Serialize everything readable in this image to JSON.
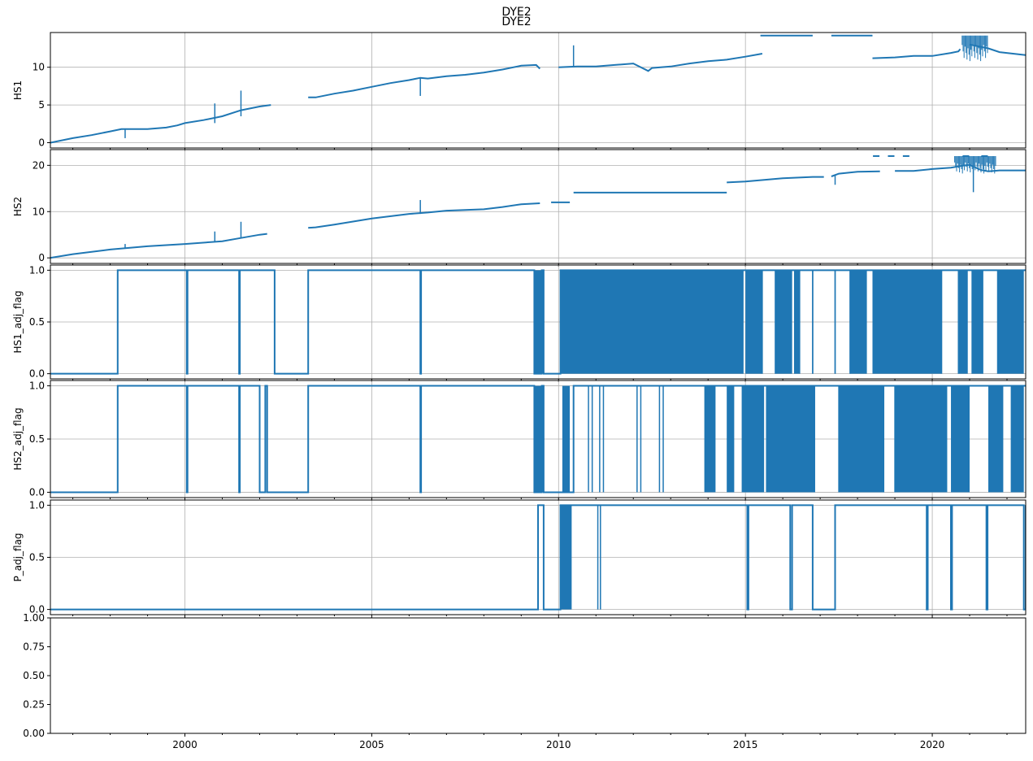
{
  "suptitle": "DYE2",
  "chart_data": [
    {
      "type": "line",
      "title": "DYE2",
      "ylabel": "HS1",
      "xlim": [
        1996.4,
        2022.5
      ],
      "ylim": [
        -0.7,
        14.6
      ],
      "yticks": [
        {
          "value": 0,
          "label": "0"
        },
        {
          "value": 5,
          "label": "5"
        },
        {
          "value": 10,
          "label": "10"
        }
      ],
      "grid": true,
      "color": "#1f77b4",
      "series": [
        {
          "x": [
            1996.4,
            1997.0,
            1997.5,
            1998.0,
            1998.3,
            1999.0,
            1999.5,
            1999.8,
            2000.0,
            2000.5,
            2001.0,
            2001.5,
            2002.0,
            2002.3,
            null,
            2003.3,
            2003.5,
            2004.0,
            2004.5,
            2005.0,
            2005.5,
            2006.0,
            2006.3,
            2006.5,
            2007.0,
            2007.5,
            2008.0,
            2008.5,
            2009.0,
            2009.4,
            2009.5,
            null,
            2010.0,
            2010.5,
            2011.0,
            2011.5,
            2012.0,
            2012.4,
            2012.5,
            2013.0,
            2013.5,
            2014.0,
            2014.5,
            2015.0,
            2015.45,
            null,
            2015.4,
            2016.8,
            null,
            2017.3,
            2018.4,
            null,
            2018.4,
            2019.0,
            2019.5,
            2020.0,
            2020.5,
            2020.7,
            2020.75,
            null,
            2021.0,
            2021.5,
            2021.8,
            2022.5
          ],
          "y": [
            0.0,
            0.6,
            1.0,
            1.5,
            1.8,
            1.8,
            2.0,
            2.3,
            2.6,
            3.0,
            3.5,
            4.3,
            4.8,
            5.0,
            null,
            6.0,
            6.0,
            6.5,
            6.9,
            7.4,
            7.9,
            8.3,
            8.6,
            8.5,
            8.8,
            9.0,
            9.3,
            9.7,
            10.2,
            10.3,
            9.8,
            null,
            10.0,
            10.1,
            10.1,
            10.3,
            10.5,
            9.5,
            9.9,
            10.1,
            10.5,
            10.8,
            11.0,
            11.4,
            11.8,
            null,
            14.2,
            14.2,
            null,
            14.2,
            14.2,
            null,
            11.2,
            11.3,
            11.5,
            11.5,
            11.9,
            12.1,
            12.4,
            null,
            13.0,
            12.5,
            12.0,
            11.6
          ]
        }
      ],
      "spikes": [
        [
          1998.4,
          1.8,
          0.6
        ],
        [
          2000.8,
          2.6,
          5.2
        ],
        [
          2001.5,
          3.5,
          6.9
        ],
        [
          2003.3,
          8.0,
          8.0
        ],
        [
          2006.3,
          8.6,
          6.2
        ],
        [
          2010.4,
          10.1,
          12.9
        ]
      ],
      "band": {
        "x": [
          2020.8,
          2021.5
        ],
        "y_low": 10.6,
        "y_high": 14.2,
        "pattern": "dense"
      }
    },
    {
      "type": "line",
      "ylabel": "HS2",
      "xlim": [
        1996.4,
        2022.5
      ],
      "ylim": [
        -1.2,
        23.4
      ],
      "yticks": [
        {
          "value": 0,
          "label": "0"
        },
        {
          "value": 10,
          "label": "10"
        },
        {
          "value": 20,
          "label": "20"
        }
      ],
      "grid": true,
      "color": "#1f77b4",
      "series": [
        {
          "x": [
            1996.4,
            1997.0,
            1998.0,
            1999.0,
            2000.0,
            2001.0,
            2001.5,
            2002.0,
            2002.2,
            null,
            2003.3,
            2003.5,
            2004.0,
            2005.0,
            2006.0,
            2006.5,
            2007.0,
            2008.0,
            2008.5,
            2009.0,
            2009.5,
            null,
            2009.8,
            2010.3,
            null,
            2010.4,
            2014.5,
            null,
            2014.5,
            2015.0,
            2016.0,
            2016.8,
            2017.1,
            null,
            2017.3,
            2017.5,
            2018.0,
            2018.6,
            null,
            2019.0,
            2019.5,
            2020.0,
            2020.5,
            2020.8,
            2021.0,
            2021.3,
            2021.5,
            2021.8,
            2022.5
          ],
          "y": [
            0.0,
            0.8,
            1.8,
            2.5,
            3.0,
            3.6,
            4.3,
            5.0,
            5.2,
            null,
            6.5,
            6.6,
            7.2,
            8.5,
            9.5,
            9.8,
            10.2,
            10.5,
            11.0,
            11.6,
            11.8,
            null,
            12.0,
            12.0,
            null,
            14.1,
            14.1,
            null,
            16.3,
            16.5,
            17.2,
            17.5,
            17.5,
            null,
            17.6,
            18.2,
            18.6,
            18.7,
            null,
            18.8,
            18.8,
            19.2,
            19.5,
            19.9,
            20.1,
            19.0,
            18.7,
            18.9,
            18.9
          ]
        }
      ],
      "spikes": [
        [
          1998.4,
          2.0,
          3.0
        ],
        [
          2000.8,
          3.5,
          5.7
        ],
        [
          2001.5,
          4.3,
          7.8
        ],
        [
          2003.3,
          8.5,
          8.5
        ],
        [
          2006.3,
          9.5,
          12.5
        ],
        [
          2017.4,
          18.0,
          15.8
        ],
        [
          2021.1,
          19.5,
          14.2
        ]
      ],
      "dots": [
        [
          2018.5,
          22.0
        ],
        [
          2018.9,
          22.0
        ],
        [
          2019.3,
          22.0
        ],
        [
          2020.9,
          22.0
        ],
        [
          2021.4,
          22.0
        ]
      ],
      "band": {
        "x": [
          2020.6,
          2021.7
        ],
        "y_low": 18.0,
        "y_high": 22.0,
        "pattern": "dense"
      }
    },
    {
      "type": "line",
      "ylabel": "HS1_adj_flag",
      "xlim": [
        1996.4,
        2022.5
      ],
      "ylim": [
        -0.05,
        1.05
      ],
      "yticks": [
        {
          "value": 0,
          "label": "0.0"
        },
        {
          "value": 0.5,
          "label": "0.5"
        },
        {
          "value": 1,
          "label": "1.0"
        }
      ],
      "grid": true,
      "color": "#1f77b4",
      "steps": [
        [
          1996.4,
          0
        ],
        [
          1998.2,
          1
        ],
        [
          2000.05,
          0
        ],
        [
          2000.07,
          1
        ],
        [
          2001.45,
          0
        ],
        [
          2001.47,
          1
        ],
        [
          2002.4,
          0
        ],
        [
          2003.3,
          1
        ],
        [
          2006.3,
          0
        ],
        [
          2006.32,
          1
        ],
        [
          2009.35,
          0
        ],
        [
          2009.55,
          1
        ],
        [
          2009.6,
          0
        ],
        [
          2010.05,
          1
        ],
        [
          2022.5,
          1
        ]
      ],
      "dense_blocks": [
        [
          2009.35,
          2009.6
        ],
        [
          2010.05,
          2014.95
        ],
        [
          2015.0,
          2015.45
        ],
        [
          2015.8,
          2016.25
        ],
        [
          2016.3,
          2016.45
        ],
        [
          2017.8,
          2018.25
        ],
        [
          2018.4,
          2020.25
        ],
        [
          2020.7,
          2020.95
        ],
        [
          2021.05,
          2021.35
        ],
        [
          2021.75,
          2022.45
        ]
      ],
      "gaps": [
        [
          2015.45,
          2015.8
        ],
        [
          2016.45,
          2016.8
        ],
        [
          2016.8,
          2017.4
        ],
        [
          2017.4,
          2017.8
        ],
        [
          2020.25,
          2020.7
        ],
        [
          2021.35,
          2021.75
        ]
      ]
    },
    {
      "type": "line",
      "ylabel": "HS2_adj_flag",
      "xlim": [
        1996.4,
        2022.5
      ],
      "ylim": [
        -0.05,
        1.05
      ],
      "yticks": [
        {
          "value": 0,
          "label": "0.0"
        },
        {
          "value": 0.5,
          "label": "0.5"
        },
        {
          "value": 1,
          "label": "1.0"
        }
      ],
      "grid": true,
      "color": "#1f77b4",
      "steps": [
        [
          1996.4,
          0
        ],
        [
          1998.2,
          1
        ],
        [
          2000.05,
          0
        ],
        [
          2000.07,
          1
        ],
        [
          2001.45,
          0
        ],
        [
          2001.47,
          1
        ],
        [
          2002.0,
          0
        ],
        [
          2002.15,
          1
        ],
        [
          2002.2,
          0
        ],
        [
          2003.3,
          1
        ],
        [
          2006.3,
          0
        ],
        [
          2006.32,
          1
        ],
        [
          2009.35,
          0
        ],
        [
          2009.55,
          1
        ],
        [
          2009.6,
          0
        ],
        [
          2010.4,
          1
        ],
        [
          2022.5,
          1
        ]
      ],
      "dense_blocks": [
        [
          2009.35,
          2009.6
        ],
        [
          2010.1,
          2010.3
        ],
        [
          2013.9,
          2014.2
        ],
        [
          2014.5,
          2014.7
        ],
        [
          2014.9,
          2015.5
        ],
        [
          2015.55,
          2016.85
        ],
        [
          2017.5,
          2018.7
        ],
        [
          2019.0,
          2020.4
        ],
        [
          2020.5,
          2021.0
        ],
        [
          2021.5,
          2021.9
        ],
        [
          2022.1,
          2022.45
        ]
      ],
      "gaps": [
        [
          2010.8,
          2010.9
        ],
        [
          2011.1,
          2011.2
        ],
        [
          2012.1,
          2012.2
        ],
        [
          2012.7,
          2012.8
        ],
        [
          2016.85,
          2017.5
        ],
        [
          2018.7,
          2019.0
        ]
      ]
    },
    {
      "type": "line",
      "ylabel": "P_adj_flag",
      "xlim": [
        1996.4,
        2022.5
      ],
      "ylim": [
        -0.05,
        1.05
      ],
      "yticks": [
        {
          "value": 0,
          "label": "0.0"
        },
        {
          "value": 0.5,
          "label": "0.5"
        },
        {
          "value": 1,
          "label": "1.0"
        }
      ],
      "grid": true,
      "color": "#1f77b4",
      "steps": [
        [
          1996.4,
          0
        ],
        [
          2009.45,
          1
        ],
        [
          2009.6,
          0
        ],
        [
          2010.05,
          1
        ],
        [
          2011.1,
          1
        ],
        [
          2015.05,
          0
        ],
        [
          2015.08,
          1
        ],
        [
          2016.2,
          0
        ],
        [
          2016.25,
          1
        ],
        [
          2016.8,
          0
        ],
        [
          2017.4,
          1
        ],
        [
          2019.85,
          0
        ],
        [
          2019.88,
          1
        ],
        [
          2020.5,
          0
        ],
        [
          2020.53,
          1
        ],
        [
          2021.45,
          0
        ],
        [
          2021.48,
          1
        ],
        [
          2022.45,
          0
        ],
        [
          2022.5,
          1
        ]
      ],
      "dense_blocks": [
        [
          2010.05,
          2010.35
        ]
      ],
      "gaps": [
        [
          2011.05,
          2011.12
        ]
      ]
    },
    {
      "type": "line",
      "ylabel": "",
      "xlim": [
        1996.4,
        2022.5
      ],
      "ylim": [
        0,
        1
      ],
      "yticks": [
        {
          "value": 0,
          "label": "0.00"
        },
        {
          "value": 0.25,
          "label": "0.25"
        },
        {
          "value": 0.5,
          "label": "0.50"
        },
        {
          "value": 0.75,
          "label": "0.75"
        },
        {
          "value": 1,
          "label": "1.00"
        }
      ],
      "grid": false,
      "series": []
    }
  ],
  "x_ticks": [
    {
      "value": 2000,
      "label": "2000"
    },
    {
      "value": 2005,
      "label": "2005"
    },
    {
      "value": 2010,
      "label": "2010"
    },
    {
      "value": 2015,
      "label": "2015"
    },
    {
      "value": 2020,
      "label": "2020"
    }
  ]
}
